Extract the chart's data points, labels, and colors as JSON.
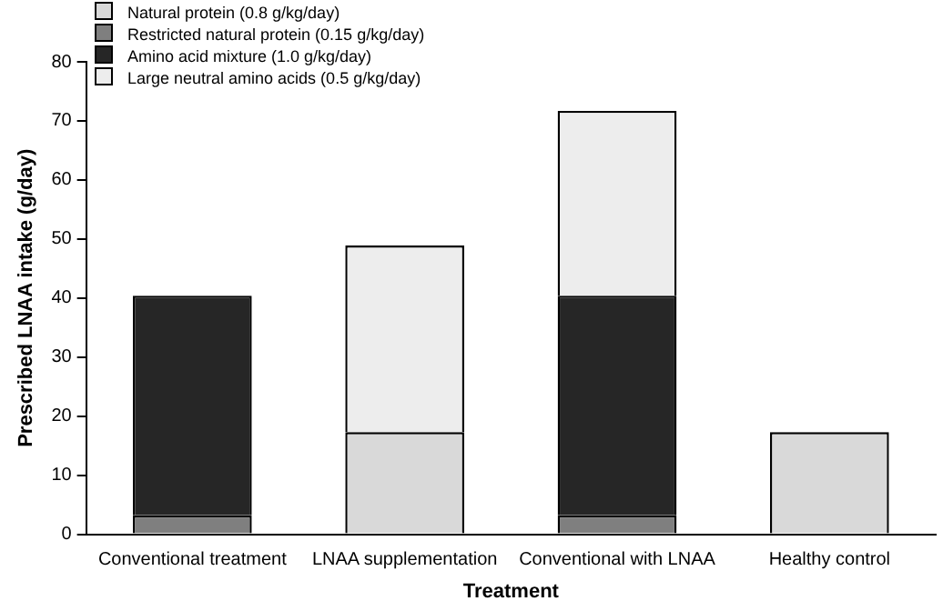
{
  "chart_data": {
    "type": "bar",
    "stacked": true,
    "xlabel": "Treatment",
    "ylabel": "Prescribed LNAA intake (g/day)",
    "categories": [
      "Conventional treatment",
      "LNAA supplementation",
      "Conventional with LNAA",
      "Healthy control"
    ],
    "series": [
      {
        "name": "Natural protein  (0.8 g/kg/day)",
        "color": "#d9d9d9",
        "values": [
          null,
          17.3,
          null,
          17.3
        ]
      },
      {
        "name": "Restricted natural protein (0.15 g/kg/day)",
        "color": "#7f7f7f",
        "values": [
          3.2,
          null,
          3.2,
          null
        ]
      },
      {
        "name": "Amino acid mixture (1.0 g/kg/day)",
        "color": "#262626",
        "values": [
          37.2,
          null,
          37.2,
          null
        ]
      },
      {
        "name": "Large neutral amino acids (0.5 g/kg/day)",
        "color": "#ededed",
        "values": [
          null,
          31.6,
          31.3,
          null
        ]
      }
    ],
    "ylim": [
      0,
      80
    ],
    "yticks": [
      0,
      10,
      20,
      30,
      40,
      50,
      60,
      70,
      80
    ],
    "grid": false,
    "legend": "top left"
  }
}
